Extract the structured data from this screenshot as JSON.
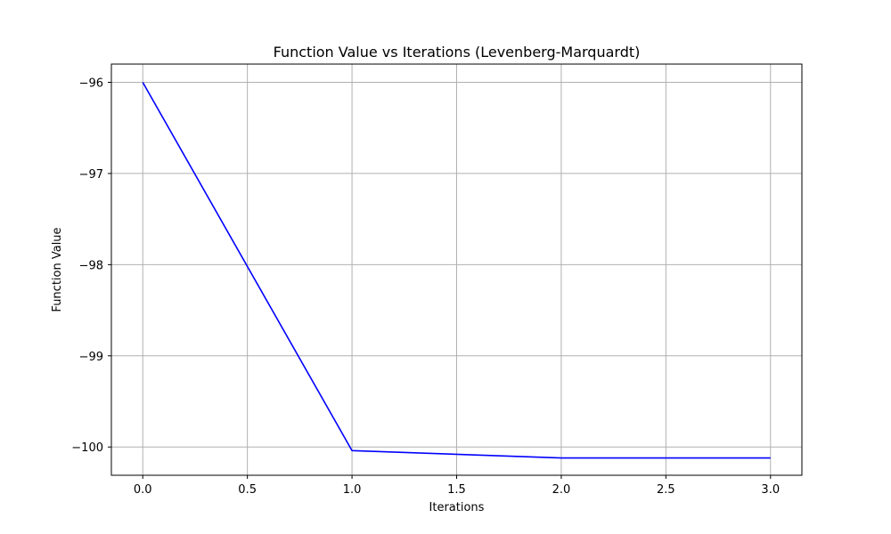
{
  "chart_data": {
    "type": "line",
    "title": "Function Value vs Iterations (Levenberg-Marquardt)",
    "xlabel": "Iterations",
    "ylabel": "Function Value",
    "xlim": [
      -0.15,
      3.15
    ],
    "ylim": [
      -100.31,
      -95.8
    ],
    "xticks": [
      0.0,
      0.5,
      1.0,
      1.5,
      2.0,
      2.5,
      3.0
    ],
    "xtick_labels": [
      "0.0",
      "0.5",
      "1.0",
      "1.5",
      "2.0",
      "2.5",
      "3.0"
    ],
    "yticks": [
      -100,
      -99,
      -98,
      -97,
      -96
    ],
    "ytick_labels": [
      "−100",
      "−99",
      "−98",
      "−97",
      "−96"
    ],
    "grid": true,
    "series": [
      {
        "color": "#0000ff",
        "x": [
          0,
          1,
          2,
          3
        ],
        "y": [
          -96.0,
          -100.04,
          -100.12,
          -100.12
        ]
      }
    ]
  }
}
